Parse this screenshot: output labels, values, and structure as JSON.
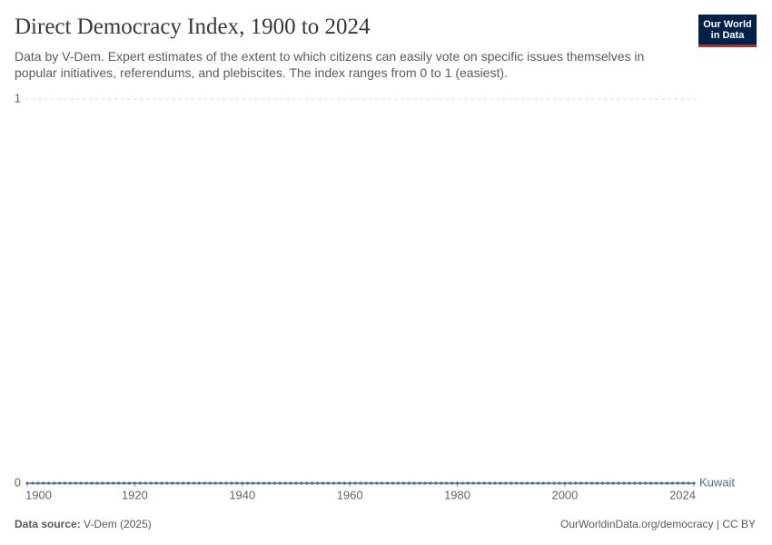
{
  "chart_data": {
    "type": "line",
    "title": "Direct Democracy Index, 1900 to 2024",
    "subtitle": "Data by V-Dem. Expert estimates of the extent to which citizens can easily vote on specific issues themselves in popular initiatives, referendums, and plebiscites. The index ranges from 0 to 1 (easiest).",
    "logo": [
      "Our World",
      "in Data"
    ],
    "source_label": "Data source:",
    "source": "V-Dem (2025)",
    "footer": "OurWorldinData.org/democracy | CC BY",
    "x": [
      1900,
      1901,
      1902,
      1903,
      1904,
      1905,
      1906,
      1907,
      1908,
      1909,
      1910,
      1911,
      1912,
      1913,
      1914,
      1915,
      1916,
      1917,
      1918,
      1919,
      1920,
      1921,
      1922,
      1923,
      1924,
      1925,
      1926,
      1927,
      1928,
      1929,
      1930,
      1931,
      1932,
      1933,
      1934,
      1935,
      1936,
      1937,
      1938,
      1939,
      1940,
      1941,
      1942,
      1943,
      1944,
      1945,
      1946,
      1947,
      1948,
      1949,
      1950,
      1951,
      1952,
      1953,
      1954,
      1955,
      1956,
      1957,
      1958,
      1959,
      1960,
      1961,
      1962,
      1963,
      1964,
      1965,
      1966,
      1967,
      1968,
      1969,
      1970,
      1971,
      1972,
      1973,
      1974,
      1975,
      1976,
      1977,
      1978,
      1979,
      1980,
      1981,
      1982,
      1983,
      1984,
      1985,
      1986,
      1987,
      1988,
      1989,
      1990,
      1991,
      1992,
      1993,
      1994,
      1995,
      1996,
      1997,
      1998,
      1999,
      2000,
      2001,
      2002,
      2003,
      2004,
      2005,
      2006,
      2007,
      2008,
      2009,
      2010,
      2011,
      2012,
      2013,
      2014,
      2015,
      2016,
      2017,
      2018,
      2019,
      2020,
      2021,
      2022,
      2023,
      2024
    ],
    "series": [
      {
        "name": "Kuwait",
        "color": "#4c6a9c",
        "values": [
          0,
          0,
          0,
          0,
          0,
          0,
          0,
          0,
          0,
          0,
          0,
          0,
          0,
          0,
          0,
          0,
          0,
          0,
          0,
          0,
          0,
          0,
          0,
          0,
          0,
          0,
          0,
          0,
          0,
          0,
          0,
          0,
          0,
          0,
          0,
          0,
          0,
          0,
          0,
          0,
          0,
          0,
          0,
          0,
          0,
          0,
          0,
          0,
          0,
          0,
          0,
          0,
          0,
          0,
          0,
          0,
          0,
          0,
          0,
          0,
          0,
          0,
          0,
          0,
          0,
          0,
          0,
          0,
          0,
          0,
          0,
          0,
          0,
          0,
          0,
          0,
          0,
          0,
          0,
          0,
          0,
          0,
          0,
          0,
          0,
          0,
          0,
          0,
          0,
          0,
          0,
          0,
          0,
          0,
          0,
          0,
          0,
          0,
          0,
          0,
          0,
          0,
          0,
          0,
          0,
          0,
          0,
          0,
          0,
          0,
          0,
          0,
          0,
          0,
          0,
          0,
          0,
          0,
          0,
          0,
          0,
          0,
          0,
          0,
          0
        ]
      }
    ],
    "xlim": [
      1900,
      2024
    ],
    "xticks": [
      1900,
      1920,
      1940,
      1960,
      1980,
      2000,
      2024
    ],
    "ylim": [
      0,
      1
    ],
    "yticks": [
      0,
      1
    ],
    "grid": true
  }
}
